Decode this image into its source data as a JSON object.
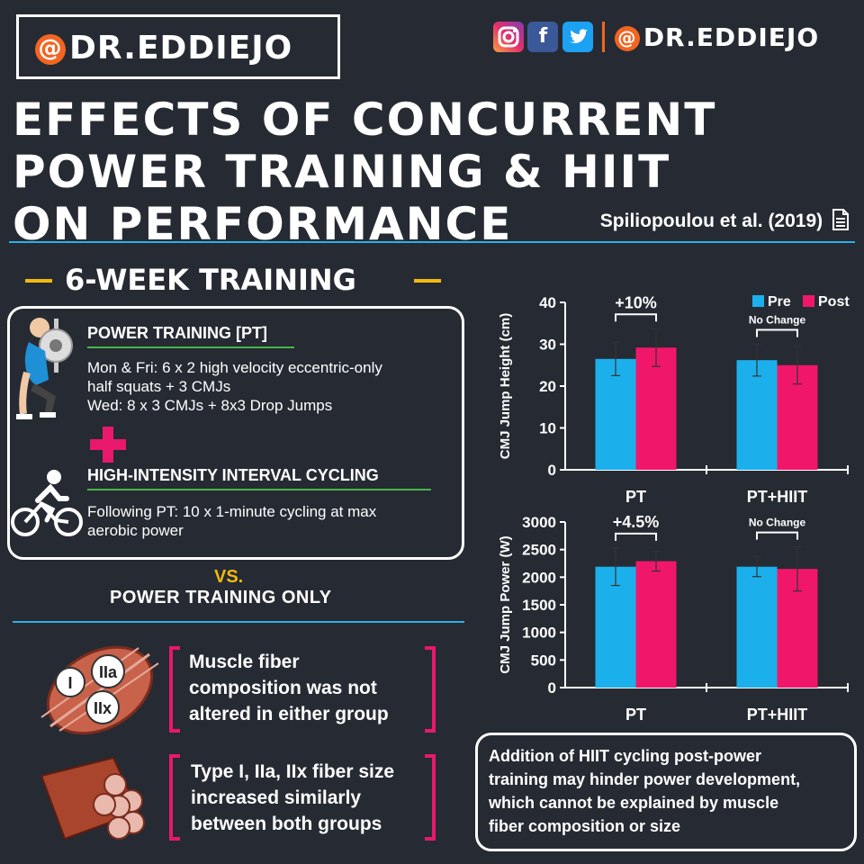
{
  "brand": {
    "handle": "DR.EDDIEJO",
    "at": "@"
  },
  "social": {
    "icons": [
      "instagram-icon",
      "facebook-icon",
      "twitter-icon"
    ],
    "fb": "f",
    "tw": "t"
  },
  "title": {
    "line1": "EFFECTS OF CONCURRENT",
    "line2": "POWER TRAINING & HIIT",
    "line3": "ON PERFORMANCE"
  },
  "reference": "Spiliopoulou et al. (2019)",
  "section_title": "6-WEEK TRAINING",
  "pt": {
    "heading": "POWER TRAINING [PT]",
    "line1": "Mon & Fri: 6 x 2 high velocity eccentric-only",
    "line2": "half squats + 3 CMJs",
    "line3": "Wed: 8 x 3 CMJs + 8x3 Drop Jumps"
  },
  "hiit": {
    "heading": "HIGH-INTENSITY INTERVAL CYCLING",
    "line1": "Following PT: 10 x 1-minute cycling at max",
    "line2": "aerobic power"
  },
  "vs": "VS.",
  "pt_only": "POWER TRAINING ONLY",
  "fiber_labels": [
    "I",
    "IIa",
    "IIx"
  ],
  "findings": {
    "f1": [
      "Muscle fiber",
      "composition was not",
      "altered in either group"
    ],
    "f2": [
      "Type I, IIa, IIx fiber size",
      "increased similarly",
      "between both groups"
    ]
  },
  "conclusion": [
    "Addition of HIIT cycling post-power",
    "training may hinder power development,",
    "which cannot be explained by muscle",
    "fiber composition or size"
  ],
  "colors": {
    "pre": "#1bb0ec",
    "post": "#f0176a",
    "accent": "#f2b90f",
    "divider": "#2bb0e8"
  },
  "chart_data": [
    {
      "type": "bar",
      "ylabel": "CMJ Jump Height (cm)",
      "categories": [
        "PT",
        "PT+HIIT"
      ],
      "series": [
        {
          "name": "Pre",
          "values": [
            26.5,
            26.2
          ],
          "errors": [
            4.0,
            3.8
          ]
        },
        {
          "name": "Post",
          "values": [
            29.2,
            25.0
          ],
          "errors": [
            4.5,
            4.5
          ]
        }
      ],
      "ylim": [
        0,
        40
      ],
      "yticks": [
        0,
        10,
        20,
        30,
        40
      ],
      "annotations": [
        "+10%",
        "No Change"
      ],
      "legend": "top-right"
    },
    {
      "type": "bar",
      "ylabel": "CMJ Jump Power (W)",
      "categories": [
        "PT",
        "PT+HIIT"
      ],
      "series": [
        {
          "name": "Pre",
          "values": [
            2190,
            2190
          ],
          "errors": [
            340,
            180
          ]
        },
        {
          "name": "Post",
          "values": [
            2290,
            2150
          ],
          "errors": [
            180,
            400
          ]
        }
      ],
      "ylim": [
        0,
        3000
      ],
      "yticks": [
        0,
        500,
        1000,
        1500,
        2000,
        2500,
        3000
      ],
      "annotations": [
        "+4.5%",
        "No Change"
      ]
    }
  ]
}
